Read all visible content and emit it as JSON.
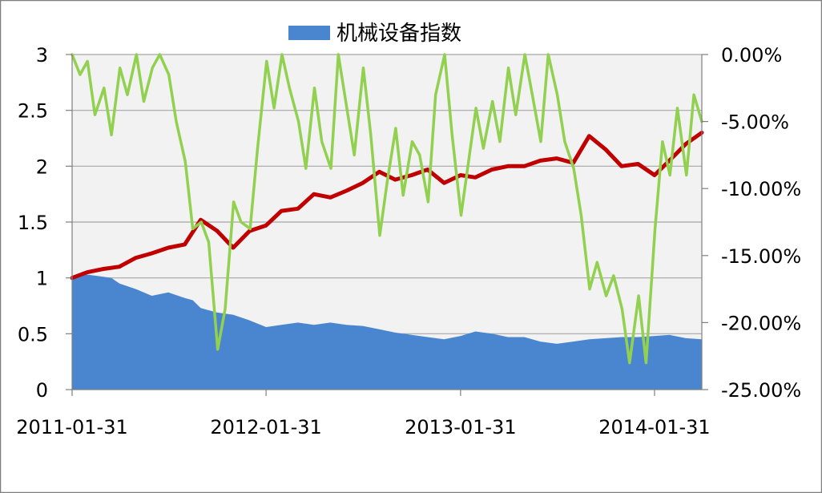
{
  "chart_data": {
    "type": "area",
    "title": "",
    "legend": {
      "position": "top",
      "entries": [
        "机械设备指数"
      ]
    },
    "xlabel": "",
    "ylabel": "",
    "grid": true,
    "x_ticks": [
      "2011-01-31",
      "2012-01-31",
      "2013-01-31",
      "2014-01-31"
    ],
    "x_range": [
      "2011-01-31",
      "2014-04-30"
    ],
    "y_left": {
      "ticks": [
        "0",
        "0.5",
        "1",
        "1.5",
        "2",
        "2.5",
        "3"
      ],
      "range": [
        0,
        3
      ]
    },
    "y_right": {
      "ticks": [
        "0.00%",
        "-5.00%",
        "-10.00%",
        "-15.00%",
        "-20.00%",
        "-25.00%"
      ],
      "range": [
        -25,
        0
      ]
    },
    "series": [
      {
        "name": "机械设备指数",
        "type": "area",
        "axis": "left",
        "color": "#4a86d0",
        "points": [
          [
            "2011-01-31",
            1.0
          ],
          [
            "2011-02-28",
            1.03
          ],
          [
            "2011-03-31",
            1.01
          ],
          [
            "2011-04-15",
            1.0
          ],
          [
            "2011-04-30",
            0.95
          ],
          [
            "2011-05-31",
            0.9
          ],
          [
            "2011-06-30",
            0.84
          ],
          [
            "2011-07-31",
            0.87
          ],
          [
            "2011-08-31",
            0.82
          ],
          [
            "2011-09-15",
            0.8
          ],
          [
            "2011-09-30",
            0.73
          ],
          [
            "2011-10-31",
            0.69
          ],
          [
            "2011-11-30",
            0.67
          ],
          [
            "2011-12-31",
            0.62
          ],
          [
            "2012-01-31",
            0.56
          ],
          [
            "2012-02-29",
            0.58
          ],
          [
            "2012-03-31",
            0.6
          ],
          [
            "2012-04-30",
            0.58
          ],
          [
            "2012-05-31",
            0.6
          ],
          [
            "2012-06-30",
            0.58
          ],
          [
            "2012-07-31",
            0.57
          ],
          [
            "2012-08-31",
            0.54
          ],
          [
            "2012-09-30",
            0.51
          ],
          [
            "2012-10-31",
            0.49
          ],
          [
            "2012-11-30",
            0.47
          ],
          [
            "2012-12-31",
            0.45
          ],
          [
            "2013-01-31",
            0.48
          ],
          [
            "2013-02-28",
            0.52
          ],
          [
            "2013-03-31",
            0.5
          ],
          [
            "2013-04-30",
            0.47
          ],
          [
            "2013-05-31",
            0.47
          ],
          [
            "2013-06-30",
            0.43
          ],
          [
            "2013-07-31",
            0.41
          ],
          [
            "2013-08-31",
            0.43
          ],
          [
            "2013-09-30",
            0.45
          ],
          [
            "2013-10-31",
            0.46
          ],
          [
            "2013-11-30",
            0.47
          ],
          [
            "2013-12-31",
            0.47
          ],
          [
            "2014-01-31",
            0.48
          ],
          [
            "2014-02-28",
            0.49
          ],
          [
            "2014-03-31",
            0.46
          ],
          [
            "2014-04-30",
            0.45
          ]
        ]
      },
      {
        "name": "",
        "type": "line",
        "axis": "left",
        "color": "#c00000",
        "points": [
          [
            "2011-01-31",
            1.0
          ],
          [
            "2011-02-28",
            1.05
          ],
          [
            "2011-03-31",
            1.08
          ],
          [
            "2011-04-30",
            1.1
          ],
          [
            "2011-05-31",
            1.18
          ],
          [
            "2011-06-30",
            1.22
          ],
          [
            "2011-07-31",
            1.27
          ],
          [
            "2011-08-31",
            1.3
          ],
          [
            "2011-09-30",
            1.52
          ],
          [
            "2011-10-31",
            1.42
          ],
          [
            "2011-11-30",
            1.27
          ],
          [
            "2011-12-31",
            1.42
          ],
          [
            "2012-01-31",
            1.47
          ],
          [
            "2012-02-29",
            1.6
          ],
          [
            "2012-03-31",
            1.62
          ],
          [
            "2012-04-30",
            1.75
          ],
          [
            "2012-05-31",
            1.72
          ],
          [
            "2012-06-30",
            1.78
          ],
          [
            "2012-07-31",
            1.85
          ],
          [
            "2012-08-31",
            1.95
          ],
          [
            "2012-09-30",
            1.88
          ],
          [
            "2012-10-31",
            1.92
          ],
          [
            "2012-11-30",
            1.97
          ],
          [
            "2012-12-31",
            1.85
          ],
          [
            "2013-01-31",
            1.92
          ],
          [
            "2013-02-28",
            1.9
          ],
          [
            "2013-03-31",
            1.97
          ],
          [
            "2013-04-30",
            2.0
          ],
          [
            "2013-05-31",
            2.0
          ],
          [
            "2013-06-30",
            2.05
          ],
          [
            "2013-07-31",
            2.07
          ],
          [
            "2013-08-31",
            2.03
          ],
          [
            "2013-09-30",
            2.27
          ],
          [
            "2013-10-31",
            2.15
          ],
          [
            "2013-11-30",
            2.0
          ],
          [
            "2013-12-31",
            2.02
          ],
          [
            "2014-01-31",
            1.92
          ],
          [
            "2014-02-28",
            2.05
          ],
          [
            "2014-03-31",
            2.2
          ],
          [
            "2014-04-30",
            2.3
          ]
        ]
      },
      {
        "name": "",
        "type": "line",
        "axis": "right",
        "color": "#92d050",
        "points": [
          [
            "2011-01-31",
            0.0
          ],
          [
            "2011-02-15",
            -1.5
          ],
          [
            "2011-03-01",
            -0.5
          ],
          [
            "2011-03-15",
            -4.5
          ],
          [
            "2011-04-01",
            -2.5
          ],
          [
            "2011-04-15",
            -6.0
          ],
          [
            "2011-05-01",
            -1.0
          ],
          [
            "2011-05-15",
            -3.0
          ],
          [
            "2011-06-01",
            0.0
          ],
          [
            "2011-06-15",
            -3.5
          ],
          [
            "2011-07-01",
            -1.0
          ],
          [
            "2011-07-15",
            0.0
          ],
          [
            "2011-08-01",
            -1.5
          ],
          [
            "2011-08-15",
            -5.0
          ],
          [
            "2011-09-01",
            -8.0
          ],
          [
            "2011-09-15",
            -13.0
          ],
          [
            "2011-10-01",
            -12.5
          ],
          [
            "2011-10-15",
            -14.0
          ],
          [
            "2011-11-01",
            -22.0
          ],
          [
            "2011-11-15",
            -19.0
          ],
          [
            "2011-12-01",
            -11.0
          ],
          [
            "2011-12-15",
            -12.5
          ],
          [
            "2012-01-01",
            -13.0
          ],
          [
            "2012-01-15",
            -7.0
          ],
          [
            "2012-02-01",
            -0.5
          ],
          [
            "2012-02-15",
            -4.0
          ],
          [
            "2012-03-01",
            0.0
          ],
          [
            "2012-03-15",
            -2.5
          ],
          [
            "2012-04-01",
            -5.0
          ],
          [
            "2012-04-15",
            -8.5
          ],
          [
            "2012-05-01",
            -2.5
          ],
          [
            "2012-05-15",
            -6.5
          ],
          [
            "2012-06-01",
            -8.5
          ],
          [
            "2012-06-15",
            0.0
          ],
          [
            "2012-07-01",
            -4.0
          ],
          [
            "2012-07-15",
            -7.5
          ],
          [
            "2012-08-01",
            -1.0
          ],
          [
            "2012-08-15",
            -6.0
          ],
          [
            "2012-09-01",
            -13.5
          ],
          [
            "2012-09-15",
            -9.5
          ],
          [
            "2012-10-01",
            -5.5
          ],
          [
            "2012-10-15",
            -10.5
          ],
          [
            "2012-11-01",
            -6.5
          ],
          [
            "2012-11-15",
            -7.5
          ],
          [
            "2012-12-01",
            -11.0
          ],
          [
            "2012-12-15",
            -3.0
          ],
          [
            "2013-01-01",
            0.0
          ],
          [
            "2013-01-15",
            -6.0
          ],
          [
            "2013-02-01",
            -12.0
          ],
          [
            "2013-02-15",
            -8.0
          ],
          [
            "2013-03-01",
            -4.0
          ],
          [
            "2013-03-15",
            -7.0
          ],
          [
            "2013-04-01",
            -3.5
          ],
          [
            "2013-04-15",
            -6.5
          ],
          [
            "2013-05-01",
            -1.0
          ],
          [
            "2013-05-15",
            -4.5
          ],
          [
            "2013-06-01",
            0.0
          ],
          [
            "2013-06-15",
            -3.0
          ],
          [
            "2013-07-01",
            -6.5
          ],
          [
            "2013-07-15",
            0.0
          ],
          [
            "2013-08-01",
            -3.0
          ],
          [
            "2013-08-15",
            -6.5
          ],
          [
            "2013-09-01",
            -8.5
          ],
          [
            "2013-09-15",
            -12.0
          ],
          [
            "2013-10-01",
            -17.5
          ],
          [
            "2013-10-15",
            -15.5
          ],
          [
            "2013-11-01",
            -18.0
          ],
          [
            "2013-11-15",
            -16.5
          ],
          [
            "2013-12-01",
            -19.0
          ],
          [
            "2013-12-15",
            -23.0
          ],
          [
            "2014-01-01",
            -18.0
          ],
          [
            "2014-01-15",
            -23.0
          ],
          [
            "2014-02-01",
            -13.0
          ],
          [
            "2014-02-15",
            -6.5
          ],
          [
            "2014-03-01",
            -9.0
          ],
          [
            "2014-03-15",
            -4.0
          ],
          [
            "2014-04-01",
            -9.0
          ],
          [
            "2014-04-15",
            -3.0
          ],
          [
            "2014-04-30",
            -5.0
          ]
        ]
      }
    ]
  }
}
